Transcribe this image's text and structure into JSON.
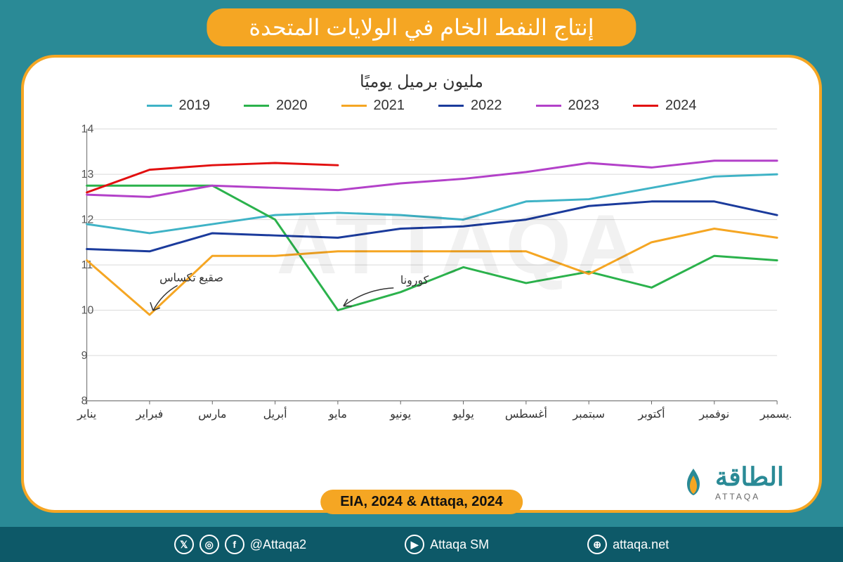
{
  "title": "إنتاج النفط الخام في الولايات المتحدة",
  "subtitle": "مليون برميل يوميًا",
  "source": "EIA, 2024 & Attaqa, 2024",
  "brand": {
    "ar": "الطاقة",
    "en": "ATTAQA"
  },
  "footer": {
    "handle": "@Attaqa2",
    "youtube": "Attaqa SM",
    "site": "attaqa.net"
  },
  "watermark": "ATTAQA",
  "annotations": {
    "corona": "كورونا",
    "texas_freeze": "صقيع تكساس"
  },
  "chart": {
    "type": "line",
    "categories": [
      "يناير",
      "فبراير",
      "مارس",
      "أبريل",
      "مايو",
      "يونيو",
      "يوليو",
      "أغسطس",
      "سبتمبر",
      "أكتوبر",
      "نوفمبر",
      "ديسمبر"
    ],
    "ylim": [
      8,
      14
    ],
    "ytick_step": 1,
    "grid_color": "#d9d9d9",
    "axis_color": "#666666",
    "label_fontsize": 16,
    "line_width": 3,
    "background_color": "#ffffff",
    "series": [
      {
        "name": "2019",
        "color": "#3fb3c6",
        "values": [
          11.9,
          11.7,
          11.9,
          12.1,
          12.15,
          12.1,
          12.0,
          12.4,
          12.45,
          12.7,
          12.95,
          13.0
        ]
      },
      {
        "name": "2020",
        "color": "#2bb24c",
        "values": [
          12.75,
          12.75,
          12.75,
          12.0,
          10.0,
          10.4,
          10.95,
          10.6,
          10.85,
          10.5,
          11.2,
          11.1
        ]
      },
      {
        "name": "2021",
        "color": "#f5a623",
        "values": [
          11.1,
          9.9,
          11.2,
          11.2,
          11.3,
          11.3,
          11.3,
          11.3,
          10.8,
          11.5,
          11.8,
          11.6
        ]
      },
      {
        "name": "2022",
        "color": "#1b3b9c",
        "values": [
          11.35,
          11.3,
          11.7,
          11.65,
          11.6,
          11.8,
          11.85,
          12.0,
          12.3,
          12.4,
          12.4,
          12.1
        ]
      },
      {
        "name": "2023",
        "color": "#b341c9",
        "values": [
          12.55,
          12.5,
          12.75,
          12.7,
          12.65,
          12.8,
          12.9,
          13.05,
          13.25,
          13.15,
          13.3,
          13.3
        ]
      },
      {
        "name": "2024",
        "color": "#e20f0f",
        "values": [
          12.6,
          13.1,
          13.2,
          13.25,
          13.2
        ]
      }
    ]
  }
}
